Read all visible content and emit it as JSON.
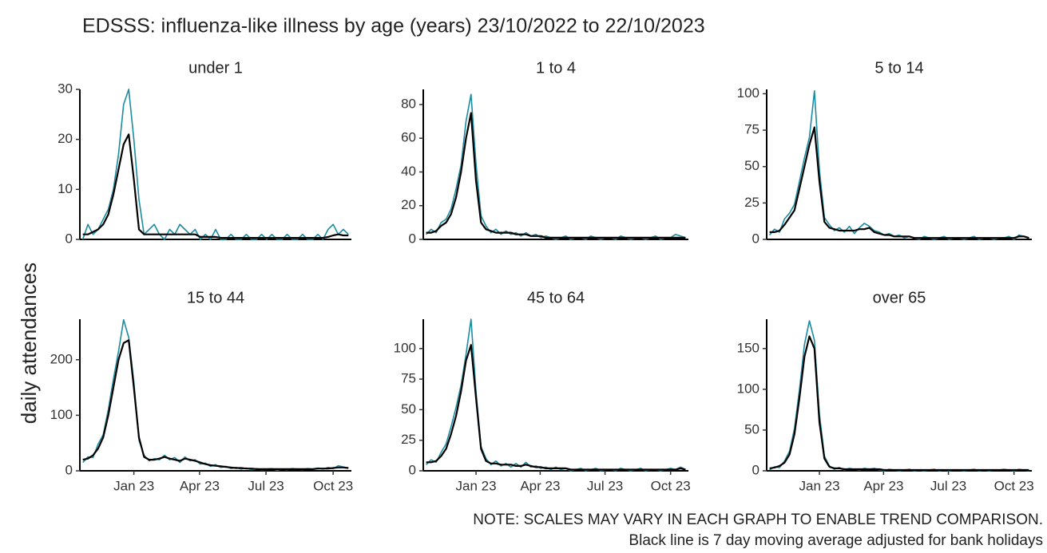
{
  "title": "EDSSS: influenza-like illness by age (years) 23/10/2022 to 22/10/2023",
  "ylabel": "daily attendances",
  "notes": [
    "NOTE: SCALES MAY VARY IN EACH GRAPH TO ENABLE TREND COMPARISON.",
    "Black line is 7 day moving average adjusted for bank holidays"
  ],
  "chart_data": [
    {
      "type": "line",
      "title": "under 1",
      "x": [
        0,
        7,
        14,
        21,
        28,
        35,
        42,
        49,
        56,
        63,
        70,
        77,
        84,
        91,
        98,
        105,
        112,
        119,
        126,
        133,
        140,
        147,
        154,
        161,
        168,
        175,
        182,
        189,
        196,
        203,
        210,
        217,
        224,
        231,
        238,
        245,
        252,
        259,
        266,
        273,
        280,
        287,
        294,
        301,
        308,
        315,
        322,
        329,
        336,
        343,
        350,
        357,
        364
      ],
      "xlim": [
        -4,
        368
      ],
      "ylim": [
        0,
        30
      ],
      "yticks": [
        0,
        10,
        20,
        30
      ],
      "series": [
        {
          "color": "#1b8ba0",
          "values": [
            0,
            3,
            1,
            2,
            4,
            6,
            10,
            17,
            27,
            30,
            20,
            8,
            1,
            2,
            3,
            1,
            0,
            2,
            1,
            3,
            2,
            1,
            2,
            0,
            1,
            0,
            2,
            0,
            0,
            1,
            0,
            0,
            1,
            0,
            0,
            1,
            0,
            1,
            0,
            0,
            1,
            0,
            0,
            1,
            0,
            0,
            1,
            0,
            2,
            3,
            1,
            2,
            1
          ]
        },
        {
          "color": "#000000",
          "values": [
            1,
            1,
            1.5,
            2,
            3,
            5,
            9,
            14,
            19,
            21,
            12,
            2,
            1,
            1,
            1,
            1,
            1,
            1,
            1,
            1,
            1,
            1,
            1,
            0.5,
            0.5,
            0.5,
            0.5,
            0.3,
            0.3,
            0.3,
            0.3,
            0.3,
            0.3,
            0.3,
            0.3,
            0.3,
            0.3,
            0.3,
            0.3,
            0.3,
            0.3,
            0.3,
            0.3,
            0.3,
            0.3,
            0.3,
            0.3,
            0.3,
            0.5,
            0.8,
            1,
            0.8,
            0.8
          ]
        }
      ]
    },
    {
      "type": "line",
      "title": "1 to 4",
      "x": [
        0,
        7,
        14,
        21,
        28,
        35,
        42,
        49,
        56,
        63,
        70,
        77,
        84,
        91,
        98,
        105,
        112,
        119,
        126,
        133,
        140,
        147,
        154,
        161,
        168,
        175,
        182,
        189,
        196,
        203,
        210,
        217,
        224,
        231,
        238,
        245,
        252,
        259,
        266,
        273,
        280,
        287,
        294,
        301,
        308,
        315,
        322,
        329,
        336,
        343,
        350,
        357,
        364
      ],
      "xlim": [
        -4,
        368
      ],
      "ylim": [
        0,
        89
      ],
      "yticks": [
        0,
        20,
        40,
        60,
        80
      ],
      "series": [
        {
          "color": "#1b8ba0",
          "values": [
            3,
            6,
            4,
            10,
            12,
            18,
            30,
            44,
            70,
            86,
            45,
            14,
            8,
            4,
            6,
            3,
            5,
            3,
            4,
            2,
            4,
            2,
            3,
            1,
            2,
            1,
            0,
            1,
            2,
            0,
            1,
            1,
            0,
            2,
            1,
            0,
            1,
            1,
            0,
            2,
            1,
            0,
            1,
            1,
            0,
            1,
            2,
            0,
            1,
            1,
            3,
            2,
            1
          ]
        },
        {
          "color": "#000000",
          "values": [
            4,
            4,
            5,
            8,
            10,
            15,
            25,
            40,
            60,
            75,
            35,
            10,
            6,
            5,
            4,
            4,
            4,
            4,
            3,
            3,
            3,
            2,
            2,
            2,
            1,
            1,
            1,
            1,
            1,
            1,
            1,
            1,
            1,
            1,
            1,
            1,
            1,
            1,
            1,
            1,
            1,
            1,
            1,
            1,
            1,
            1,
            1,
            1,
            1,
            1,
            1,
            1,
            1
          ]
        }
      ]
    },
    {
      "type": "line",
      "title": "5 to 14",
      "x": [
        0,
        7,
        14,
        21,
        28,
        35,
        42,
        49,
        56,
        63,
        70,
        77,
        84,
        91,
        98,
        105,
        112,
        119,
        126,
        133,
        140,
        147,
        154,
        161,
        168,
        175,
        182,
        189,
        196,
        203,
        210,
        217,
        224,
        231,
        238,
        245,
        252,
        259,
        266,
        273,
        280,
        287,
        294,
        301,
        308,
        315,
        322,
        329,
        336,
        343,
        350,
        357,
        364
      ],
      "xlim": [
        -4,
        368
      ],
      "ylim": [
        0,
        103
      ],
      "yticks": [
        0,
        25,
        50,
        75,
        100
      ],
      "series": [
        {
          "color": "#1b8ba0",
          "values": [
            3,
            7,
            5,
            14,
            18,
            24,
            40,
            56,
            70,
            102,
            48,
            15,
            10,
            6,
            8,
            5,
            9,
            4,
            8,
            11,
            9,
            6,
            5,
            3,
            4,
            2,
            3,
            1,
            2,
            1,
            0,
            2,
            1,
            0,
            1,
            2,
            0,
            1,
            1,
            0,
            1,
            2,
            0,
            1,
            1,
            0,
            1,
            1,
            2,
            0,
            3,
            2,
            1
          ]
        },
        {
          "color": "#000000",
          "values": [
            5,
            5,
            6,
            10,
            15,
            20,
            35,
            50,
            65,
            77,
            40,
            12,
            8,
            7,
            6,
            6,
            6,
            6,
            7,
            7,
            8,
            5,
            4,
            3,
            3,
            2,
            2,
            2,
            2,
            1,
            1,
            1,
            1,
            1,
            1,
            1,
            1,
            1,
            1,
            1,
            1,
            1,
            1,
            1,
            1,
            1,
            1,
            1,
            1,
            1,
            2,
            2,
            1
          ]
        }
      ]
    },
    {
      "type": "line",
      "title": "15 to 44",
      "x": [
        0,
        7,
        14,
        21,
        28,
        35,
        42,
        49,
        56,
        63,
        70,
        77,
        84,
        91,
        98,
        105,
        112,
        119,
        126,
        133,
        140,
        147,
        154,
        161,
        168,
        175,
        182,
        189,
        196,
        203,
        210,
        217,
        224,
        231,
        238,
        245,
        252,
        259,
        266,
        273,
        280,
        287,
        294,
        301,
        308,
        315,
        322,
        329,
        336,
        343,
        350,
        357,
        364
      ],
      "xlim": [
        -4,
        368
      ],
      "ylim": [
        0,
        273
      ],
      "yticks": [
        0,
        100,
        200
      ],
      "xticks": [
        {
          "value": 70,
          "label": "Jan 23"
        },
        {
          "value": 160,
          "label": "Apr 23"
        },
        {
          "value": 251,
          "label": "Jul 23"
        },
        {
          "value": 343,
          "label": "Oct 23"
        }
      ],
      "series": [
        {
          "color": "#1b8ba0",
          "values": [
            15,
            25,
            24,
            48,
            65,
            110,
            165,
            215,
            272,
            240,
            160,
            55,
            28,
            18,
            22,
            20,
            28,
            20,
            24,
            15,
            25,
            18,
            20,
            12,
            14,
            8,
            11,
            6,
            8,
            4,
            6,
            3,
            5,
            2,
            4,
            2,
            3,
            4,
            1,
            3,
            2,
            4,
            3,
            2,
            4,
            3,
            5,
            3,
            6,
            4,
            9,
            7,
            5
          ]
        },
        {
          "color": "#000000",
          "values": [
            20,
            22,
            28,
            40,
            60,
            100,
            150,
            200,
            230,
            235,
            150,
            60,
            25,
            20,
            20,
            22,
            25,
            22,
            20,
            18,
            22,
            20,
            18,
            15,
            12,
            10,
            9,
            8,
            7,
            6,
            5,
            5,
            4,
            4,
            3,
            3,
            3,
            3,
            3,
            3,
            3,
            3,
            3,
            3,
            3,
            3,
            4,
            4,
            4,
            5,
            6,
            6,
            5
          ]
        }
      ]
    },
    {
      "type": "line",
      "title": "45 to 64",
      "x": [
        0,
        7,
        14,
        21,
        28,
        35,
        42,
        49,
        56,
        63,
        70,
        77,
        84,
        91,
        98,
        105,
        112,
        119,
        126,
        133,
        140,
        147,
        154,
        161,
        168,
        175,
        182,
        189,
        196,
        203,
        210,
        217,
        224,
        231,
        238,
        245,
        252,
        259,
        266,
        273,
        280,
        287,
        294,
        301,
        308,
        315,
        322,
        329,
        336,
        343,
        350,
        357,
        364
      ],
      "xlim": [
        -4,
        368
      ],
      "ylim": [
        0,
        124
      ],
      "yticks": [
        0,
        25,
        50,
        75,
        100
      ],
      "xticks": [
        {
          "value": 70,
          "label": "Jan 23"
        },
        {
          "value": 160,
          "label": "Apr 23"
        },
        {
          "value": 251,
          "label": "Jul 23"
        },
        {
          "value": 343,
          "label": "Oct 23"
        }
      ],
      "series": [
        {
          "color": "#1b8ba0",
          "values": [
            5,
            9,
            7,
            15,
            22,
            36,
            52,
            70,
            95,
            124,
            65,
            20,
            10,
            5,
            8,
            4,
            6,
            3,
            6,
            3,
            7,
            3,
            4,
            2,
            3,
            1,
            3,
            1,
            2,
            0,
            1,
            2,
            0,
            1,
            2,
            0,
            1,
            1,
            0,
            2,
            1,
            0,
            1,
            2,
            0,
            1,
            1,
            0,
            1,
            2,
            1,
            3,
            1
          ]
        },
        {
          "color": "#000000",
          "values": [
            7,
            7,
            8,
            12,
            18,
            30,
            45,
            65,
            90,
            103,
            60,
            18,
            8,
            6,
            6,
            5,
            5,
            5,
            4,
            4,
            5,
            4,
            3,
            3,
            2,
            2,
            2,
            2,
            2,
            1,
            1,
            1,
            1,
            1,
            1,
            1,
            1,
            1,
            1,
            1,
            1,
            1,
            1,
            1,
            1,
            1,
            1,
            1,
            1,
            1,
            1,
            2,
            1
          ]
        }
      ]
    },
    {
      "type": "line",
      "title": "over 65",
      "x": [
        0,
        7,
        14,
        21,
        28,
        35,
        42,
        49,
        56,
        63,
        70,
        77,
        84,
        91,
        98,
        105,
        112,
        119,
        126,
        133,
        140,
        147,
        154,
        161,
        168,
        175,
        182,
        189,
        196,
        203,
        210,
        217,
        224,
        231,
        238,
        245,
        252,
        259,
        266,
        273,
        280,
        287,
        294,
        301,
        308,
        315,
        322,
        329,
        336,
        343,
        350,
        357,
        364
      ],
      "xlim": [
        -4,
        368
      ],
      "ylim": [
        0,
        186
      ],
      "yticks": [
        0,
        50,
        100,
        150
      ],
      "xticks": [
        {
          "value": 70,
          "label": "Jan 23"
        },
        {
          "value": 160,
          "label": "Apr 23"
        },
        {
          "value": 251,
          "label": "Jul 23"
        },
        {
          "value": 343,
          "label": "Oct 23"
        }
      ],
      "series": [
        {
          "color": "#1b8ba0",
          "values": [
            1,
            5,
            4,
            12,
            24,
            52,
            100,
            155,
            184,
            160,
            70,
            18,
            6,
            2,
            4,
            1,
            3,
            2,
            1,
            3,
            2,
            3,
            1,
            0,
            2,
            1,
            0,
            1,
            2,
            0,
            1,
            0,
            1,
            2,
            0,
            1,
            0,
            1,
            1,
            0,
            1,
            2,
            0,
            1,
            0,
            1,
            1,
            2,
            1,
            0,
            2,
            1,
            0
          ]
        },
        {
          "color": "#000000",
          "values": [
            3,
            4,
            6,
            10,
            20,
            45,
            90,
            140,
            165,
            150,
            60,
            15,
            5,
            3,
            3,
            2,
            2,
            2,
            2,
            2,
            2,
            2,
            2,
            1,
            1,
            1,
            1,
            1,
            1,
            1,
            1,
            1,
            1,
            1,
            1,
            1,
            1,
            1,
            1,
            1,
            1,
            1,
            1,
            1,
            1,
            1,
            1,
            1,
            1,
            1,
            1,
            1,
            1
          ]
        }
      ]
    }
  ]
}
